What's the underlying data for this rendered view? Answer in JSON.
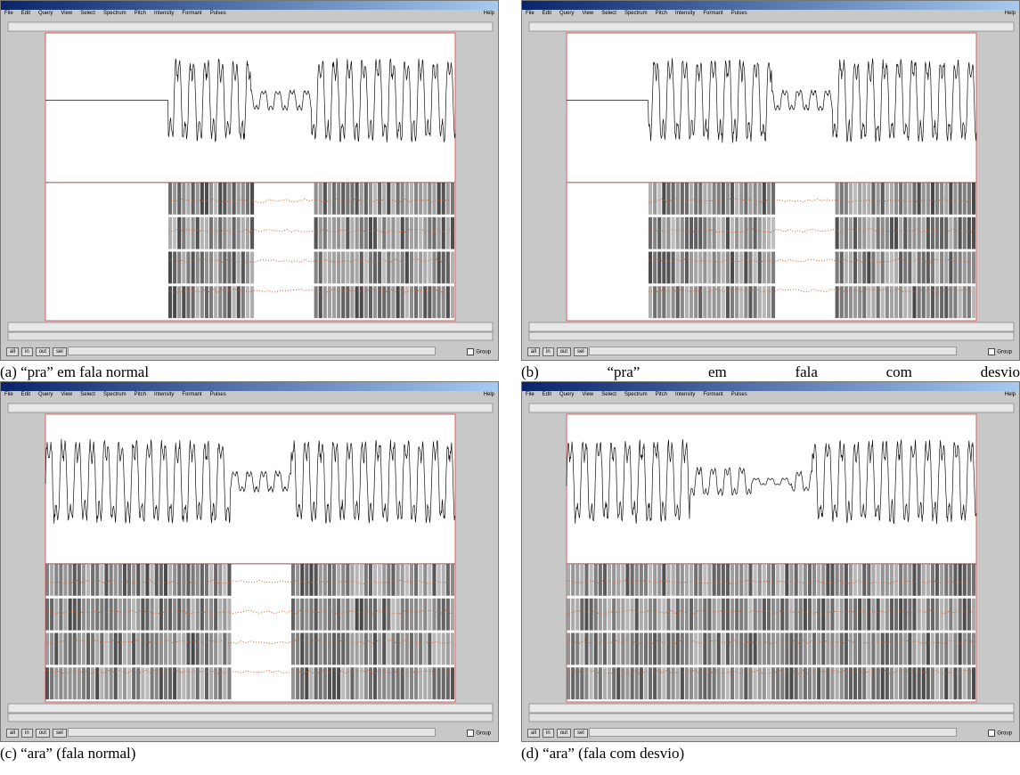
{
  "window": {
    "menu": [
      "File",
      "Edit",
      "Query",
      "View",
      "Select",
      "Spectrum",
      "Pitch",
      "Intensity",
      "Formant",
      "Pulses"
    ],
    "help": "Help",
    "buttons": [
      "all",
      "in",
      "out",
      "sel"
    ],
    "group": "Group"
  },
  "captions": [
    "(a) “pra” em fala normal",
    "(b) “pra” em fala com desvio",
    "(c) “ara” (fala normal)",
    "(d) “ara” (fala com desvio)"
  ]
}
